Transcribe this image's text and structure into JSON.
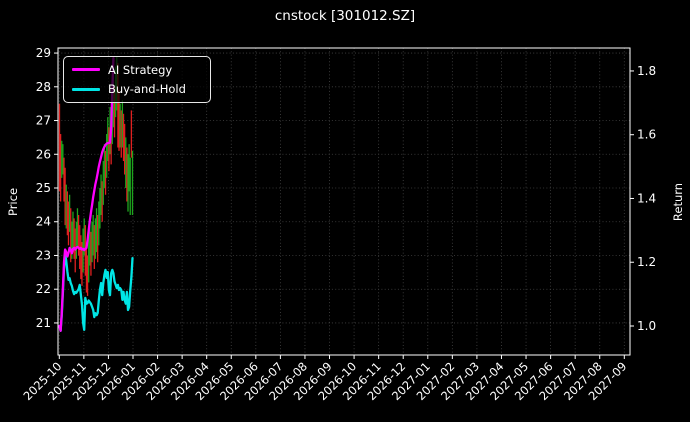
{
  "title": "cnstock [301012.SZ]",
  "chart_data": {
    "type": "candlestick+line",
    "title": "cnstock [301012.SZ]",
    "layout": {
      "background": "#000000",
      "foreground": "#ffffff",
      "grid_color": "#9a9a9a",
      "grid_on": true,
      "legend_position": "upper-left"
    },
    "x_axis": {
      "tick_rotation": -45,
      "tick_labels": [
        "2025-10",
        "2025-11",
        "2025-12",
        "2026-01",
        "2026-02",
        "2026-03",
        "2026-04",
        "2026-05",
        "2026-06",
        "2026-07",
        "2026-08",
        "2026-09",
        "2026-10",
        "2026-11",
        "2026-12",
        "2027-01",
        "2027-02",
        "2027-03",
        "2027-04",
        "2027-05",
        "2027-06",
        "2027-07",
        "2027-08",
        "2027-09"
      ]
    },
    "left_axis": {
      "label": "Price",
      "ticks": [
        "21",
        "22",
        "23",
        "24",
        "25",
        "26",
        "27",
        "28",
        "29"
      ],
      "range": [
        20.05,
        29.15
      ]
    },
    "right_axis": {
      "label": "Return",
      "ticks": [
        "1.0",
        "1.2",
        "1.4",
        "1.6",
        "1.8"
      ],
      "range": [
        0.909,
        1.872
      ]
    },
    "legend": {
      "items": [
        {
          "label": "AI Strategy",
          "color": "#ff00ff"
        },
        {
          "label": "Buy-and-Hold",
          "color": "#00e5e5"
        }
      ]
    },
    "candles": {
      "axis": "price",
      "up_color": "#1ea51e",
      "down_color": "#e02020",
      "note": "bars = [high, low, up(1)/down(0)], daily from 2025-10-01",
      "bars": [
        [
          27.5,
          24.9,
          0
        ],
        [
          26.6,
          24.6,
          0
        ],
        [
          26.4,
          25.3,
          1
        ],
        [
          26.3,
          25.4,
          1
        ],
        [
          25.9,
          24.6,
          0
        ],
        [
          25.6,
          23.9,
          0
        ],
        [
          25.1,
          23.8,
          1
        ],
        [
          24.9,
          23.6,
          0
        ],
        [
          24.6,
          23.3,
          0
        ],
        [
          24.8,
          23.7,
          1
        ],
        [
          24.4,
          22.8,
          0
        ],
        [
          24.0,
          22.9,
          1
        ],
        [
          24.3,
          23.1,
          1
        ],
        [
          24.1,
          22.9,
          0
        ],
        [
          23.8,
          22.5,
          0
        ],
        [
          24.0,
          22.9,
          1
        ],
        [
          24.4,
          23.2,
          1
        ],
        [
          24.2,
          23.0,
          0
        ],
        [
          23.9,
          22.6,
          0
        ],
        [
          23.6,
          22.3,
          0
        ],
        [
          23.4,
          22.1,
          0
        ],
        [
          23.8,
          22.5,
          1
        ],
        [
          24.1,
          23.0,
          1
        ],
        [
          23.9,
          22.4,
          0
        ],
        [
          23.3,
          21.9,
          0
        ],
        [
          23.0,
          21.8,
          0
        ],
        [
          23.6,
          22.2,
          1
        ],
        [
          23.9,
          22.7,
          1
        ],
        [
          23.7,
          22.4,
          0
        ],
        [
          24.0,
          22.8,
          1
        ],
        [
          24.2,
          23.0,
          1
        ],
        [
          23.9,
          22.6,
          0
        ],
        [
          24.1,
          22.9,
          1
        ],
        [
          24.4,
          23.1,
          1
        ],
        [
          24.2,
          22.8,
          0
        ],
        [
          24.6,
          23.3,
          1
        ],
        [
          25.0,
          23.8,
          1
        ],
        [
          25.4,
          24.2,
          1
        ],
        [
          25.2,
          24.0,
          0
        ],
        [
          25.8,
          24.5,
          1
        ],
        [
          26.3,
          25.0,
          1
        ],
        [
          26.1,
          24.8,
          0
        ],
        [
          26.6,
          25.3,
          1
        ],
        [
          27.1,
          25.8,
          1
        ],
        [
          26.8,
          25.5,
          0
        ],
        [
          27.4,
          26.0,
          1
        ],
        [
          27.2,
          25.7,
          0
        ],
        [
          27.8,
          26.3,
          1
        ],
        [
          28.3,
          26.8,
          1
        ],
        [
          28.0,
          26.5,
          0
        ],
        [
          28.6,
          27.1,
          1
        ],
        [
          28.9,
          27.3,
          1
        ],
        [
          28.7,
          26.2,
          0
        ],
        [
          27.9,
          26.1,
          0
        ],
        [
          27.5,
          26.2,
          1
        ],
        [
          27.3,
          25.9,
          0
        ],
        [
          27.6,
          26.2,
          1
        ],
        [
          27.2,
          25.8,
          0
        ],
        [
          26.9,
          25.4,
          0
        ],
        [
          26.5,
          25.0,
          1
        ],
        [
          26.2,
          24.6,
          0
        ],
        [
          26.0,
          24.3,
          1
        ],
        [
          26.3,
          24.9,
          1
        ],
        [
          25.9,
          24.2,
          1
        ],
        [
          27.3,
          25.9,
          0
        ],
        [
          26.1,
          24.2,
          1
        ]
      ]
    },
    "series": [
      {
        "name": "AI Strategy",
        "color": "#ff00ff",
        "axis": "return",
        "values": [
          1.0,
          0.985,
          1.04,
          1.12,
          1.2,
          1.24,
          1.232,
          1.218,
          1.23,
          1.245,
          1.24,
          1.228,
          1.242,
          1.245,
          1.24,
          1.245,
          1.248,
          1.245,
          1.242,
          1.245,
          1.24,
          1.242,
          1.238,
          1.242,
          1.245,
          1.27,
          1.3,
          1.33,
          1.355,
          1.38,
          1.405,
          1.425,
          1.445,
          1.462,
          1.48,
          1.5,
          1.515,
          1.53,
          1.545,
          1.555,
          1.562,
          1.568,
          1.572,
          1.574,
          1.574,
          1.575,
          1.62,
          1.74,
          1.84
        ]
      },
      {
        "name": "Buy-and-Hold",
        "color": "#00e5e5",
        "axis": "return",
        "values": [
          1.0,
          0.985,
          1.03,
          1.105,
          1.18,
          1.226,
          1.205,
          1.17,
          1.145,
          1.15,
          1.135,
          1.125,
          1.11,
          1.1,
          1.107,
          1.104,
          1.11,
          1.116,
          1.129,
          1.1,
          1.066,
          1.01,
          0.988,
          1.088,
          1.07,
          1.072,
          1.08,
          1.075,
          1.07,
          1.06,
          1.05,
          1.028,
          1.04,
          1.034,
          1.041,
          1.08,
          1.113,
          1.135,
          1.097,
          1.135,
          1.16,
          1.176,
          1.151,
          1.169,
          1.113,
          1.097,
          1.166,
          1.176,
          1.166,
          1.14,
          1.129,
          1.119,
          1.129,
          1.113,
          1.119,
          1.113,
          1.082,
          1.107,
          1.082,
          1.07,
          1.107,
          1.05,
          1.06,
          1.11,
          1.154,
          1.213
        ]
      }
    ]
  }
}
